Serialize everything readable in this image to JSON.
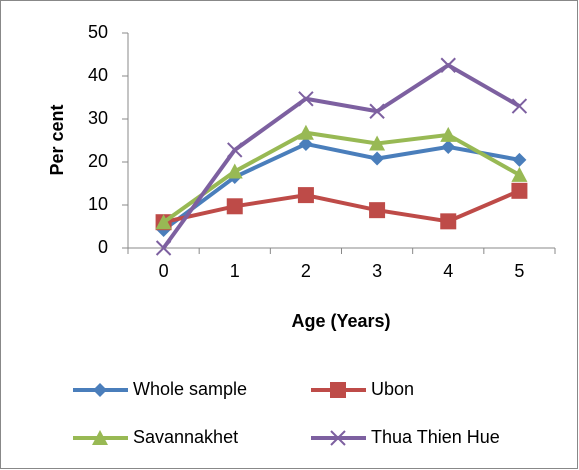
{
  "chart_data": {
    "type": "line",
    "y_label": "Per cent",
    "x_label": "Age (Years)",
    "categories": [
      "0",
      "1",
      "2",
      "3",
      "4",
      "5"
    ],
    "series": [
      {
        "name": "Whole sample",
        "color": "#4a7ebb",
        "marker": "diamond",
        "values": [
          4.2,
          16.5,
          24.2,
          20.8,
          23.5,
          20.5
        ]
      },
      {
        "name": "Ubon",
        "color": "#be4b48",
        "marker": "square",
        "values": [
          6,
          9.7,
          12.3,
          8.8,
          6.2,
          13.3
        ]
      },
      {
        "name": "Savannakhet",
        "color": "#98b954",
        "marker": "triangle",
        "values": [
          6,
          17.8,
          26.8,
          24.3,
          26.3,
          17
        ]
      },
      {
        "name": "Thua Thien Hue",
        "color": "#7d60a0",
        "marker": "x",
        "values": [
          0,
          22.8,
          34.7,
          31.8,
          42.5,
          33
        ]
      }
    ],
    "ylim": [
      0,
      50
    ],
    "yticks": [
      0,
      10,
      20,
      30,
      40,
      50
    ],
    "grid": false,
    "legend": "bottom"
  }
}
